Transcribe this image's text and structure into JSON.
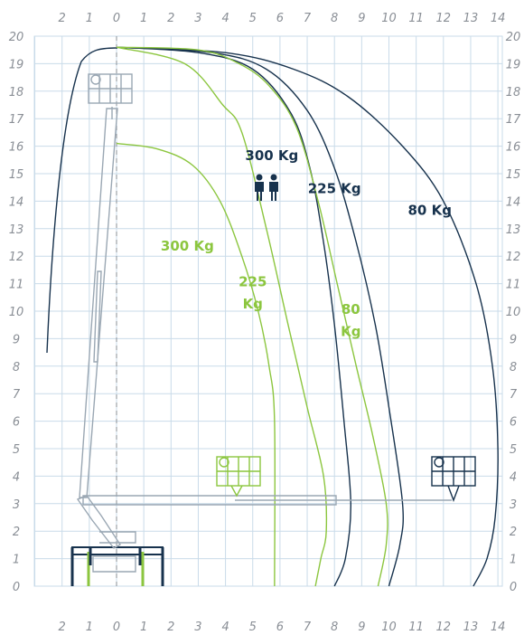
{
  "chart_data": {
    "type": "diagram",
    "title": "",
    "x_ticks": [
      "2",
      "1",
      "0",
      "1",
      "2",
      "3",
      "4",
      "5",
      "6",
      "7",
      "8",
      "9",
      "10",
      "11",
      "12",
      "13",
      "14"
    ],
    "y_ticks": [
      "0",
      "1",
      "2",
      "3",
      "4",
      "5",
      "6",
      "7",
      "8",
      "9",
      "10",
      "11",
      "12",
      "13",
      "14",
      "15",
      "16",
      "17",
      "18",
      "19",
      "20"
    ],
    "colors": {
      "dark": "#17324d",
      "green": "#8cc63f",
      "grid": "#c9dbe9",
      "machine": "#9aa7b3"
    },
    "envelopes": [
      {
        "id": "dark-300",
        "color": "dark",
        "points": [
          [
            0,
            19.6
          ],
          [
            3,
            19.4
          ],
          [
            5,
            18.8
          ],
          [
            6.4,
            17.2
          ],
          [
            7.1,
            15.2
          ],
          [
            7.6,
            12.5
          ],
          [
            8.0,
            9.5
          ],
          [
            8.35,
            6
          ],
          [
            8.6,
            3
          ],
          [
            8.4,
            1
          ],
          [
            8.0,
            0
          ]
        ]
      },
      {
        "id": "dark-225",
        "color": "dark",
        "points": [
          [
            0,
            19.6
          ],
          [
            3.5,
            19.4
          ],
          [
            5.5,
            18.8
          ],
          [
            7,
            17.3
          ],
          [
            8,
            15.2
          ],
          [
            8.8,
            12.5
          ],
          [
            9.5,
            9.5
          ],
          [
            10,
            6.5
          ],
          [
            10.5,
            3
          ],
          [
            10.4,
            1.5
          ],
          [
            10,
            0
          ]
        ]
      },
      {
        "id": "dark-80",
        "color": "dark",
        "points": [
          [
            0,
            19.6
          ],
          [
            4,
            19.4
          ],
          [
            6.5,
            18.8
          ],
          [
            8.5,
            17.8
          ],
          [
            10.5,
            16
          ],
          [
            12,
            14
          ],
          [
            13.2,
            11
          ],
          [
            13.8,
            8
          ],
          [
            14,
            5
          ],
          [
            13.9,
            2.5
          ],
          [
            13.6,
            1
          ],
          [
            13.1,
            0
          ]
        ]
      },
      {
        "id": "green-300",
        "color": "green",
        "points": [
          [
            0,
            16.1
          ],
          [
            1.5,
            15.9
          ],
          [
            2.8,
            15.3
          ],
          [
            3.8,
            14
          ],
          [
            4.6,
            12
          ],
          [
            5.2,
            10
          ],
          [
            5.6,
            8
          ],
          [
            5.8,
            6
          ],
          [
            5.8,
            0
          ]
        ]
      },
      {
        "id": "green-225",
        "color": "green",
        "points": [
          [
            0,
            19.6
          ],
          [
            2.5,
            19
          ],
          [
            3.9,
            17.5
          ],
          [
            4.6,
            16.5
          ],
          [
            5.5,
            13
          ],
          [
            6.3,
            9.5
          ],
          [
            7.0,
            6.5
          ],
          [
            7.6,
            4
          ],
          [
            7.7,
            2
          ],
          [
            7.5,
            1
          ],
          [
            7.3,
            0
          ]
        ]
      },
      {
        "id": "green-80",
        "color": "green",
        "points": [
          [
            0,
            19.6
          ],
          [
            3,
            19.5
          ],
          [
            4.5,
            19
          ],
          [
            5.6,
            18.2
          ],
          [
            6.6,
            16.7
          ],
          [
            7.4,
            14
          ],
          [
            8.1,
            11
          ],
          [
            8.8,
            8
          ],
          [
            9.4,
            5.5
          ],
          [
            9.9,
            3
          ],
          [
            9.9,
            1.5
          ],
          [
            9.6,
            0
          ]
        ]
      }
    ],
    "labels": [
      {
        "id": "dark-300-kg",
        "color": "dark",
        "text": "300 Kg",
        "x": 5.7,
        "y": 15.5
      },
      {
        "id": "dark-225-kg",
        "color": "dark",
        "text": "225 Kg",
        "x": 8.0,
        "y": 14.3
      },
      {
        "id": "dark-80-kg",
        "color": "dark",
        "text": "80 Kg",
        "x": 11.5,
        "y": 13.5
      },
      {
        "id": "green-300-kg",
        "color": "green",
        "text": "300 Kg",
        "x": 2.6,
        "y": 12.2
      },
      {
        "id": "green-225-num",
        "color": "green",
        "text": "225",
        "x": 5.0,
        "y": 10.9
      },
      {
        "id": "green-225-unit",
        "color": "green",
        "text": "Kg",
        "x": 5.0,
        "y": 10.1
      },
      {
        "id": "green-80-num",
        "color": "green",
        "text": "80",
        "x": 8.6,
        "y": 9.9
      },
      {
        "id": "green-80-unit",
        "color": "green",
        "text": "Kg",
        "x": 8.6,
        "y": 9.1
      }
    ]
  }
}
